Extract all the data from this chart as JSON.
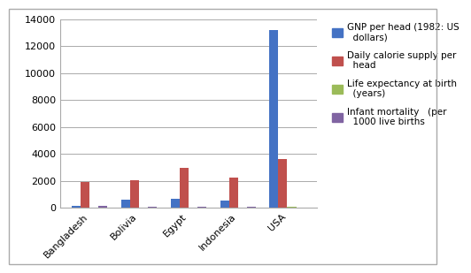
{
  "categories": [
    "Bangladesh",
    "Bolivia",
    "Egypt",
    "Indonesia",
    "USA"
  ],
  "series": [
    {
      "label": "GNP per head (1982: US\n  dollars)",
      "color": "#4472C4",
      "values": [
        140,
        600,
        690,
        580,
        13160
      ]
    },
    {
      "label": "Daily calorie supply per\n  head",
      "color": "#C0504D",
      "values": [
        1900,
        2070,
        2950,
        2270,
        3650
      ]
    },
    {
      "label": "Life expectancy at birth\n  (years)",
      "color": "#9BBB59",
      "values": [
        47,
        53,
        57,
        55,
        75
      ]
    },
    {
      "label": "Infant mortality   (per\n  1000 live births",
      "color": "#8064A2",
      "values": [
        135,
        124,
        82,
        87,
        11
      ]
    }
  ],
  "ylim": [
    0,
    14000
  ],
  "yticks": [
    0,
    2000,
    4000,
    6000,
    8000,
    10000,
    12000,
    14000
  ],
  "background_color": "#FFFFFF",
  "plot_bg_color": "#FFFFFF",
  "grid_color": "#AAAAAA",
  "legend_fontsize": 7.5,
  "tick_fontsize": 8,
  "bar_width": 0.18,
  "border_color": "#AAAAAA"
}
